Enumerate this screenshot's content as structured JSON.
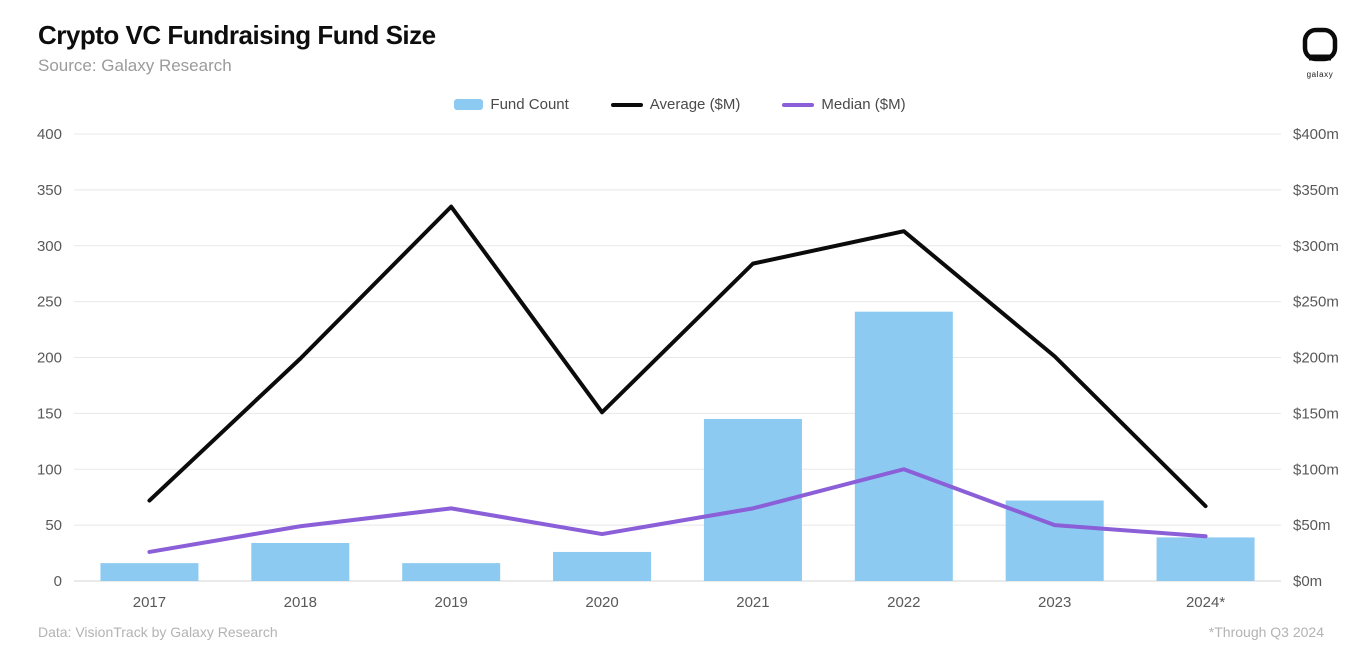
{
  "header": {
    "title": "Crypto VC Fundraising Fund Size",
    "subtitle": "Source: Galaxy Research"
  },
  "logo": {
    "label": "galaxy"
  },
  "legend": [
    {
      "label": "Fund Count",
      "swatch": "bar",
      "color": "#8DCAF2"
    },
    {
      "label": "Average ($M)",
      "swatch": "line",
      "color": "#0b0b0b"
    },
    {
      "label": "Median ($M)",
      "swatch": "line",
      "color": "#8A5FD8"
    }
  ],
  "footer": {
    "left": "Data: VisionTrack by Galaxy Research",
    "right": "*Through Q3 2024"
  },
  "chart_data": {
    "type": "bar",
    "title": "Crypto VC Fundraising Fund Size",
    "categories": [
      "2017",
      "2018",
      "2019",
      "2020",
      "2021",
      "2022",
      "2023",
      "2024*"
    ],
    "series": [
      {
        "name": "Fund Count",
        "type": "bar",
        "axis": "left",
        "color": "#8DCAF2",
        "values": [
          16,
          34,
          16,
          26,
          145,
          241,
          72,
          39
        ]
      },
      {
        "name": "Average ($M)",
        "type": "line",
        "axis": "right",
        "color": "#0b0b0b",
        "values": [
          72,
          199,
          335,
          151,
          284,
          313,
          201,
          67
        ]
      },
      {
        "name": "Median ($M)",
        "type": "line",
        "axis": "right",
        "color": "#8A5FD8",
        "values": [
          26,
          49,
          65,
          42,
          65,
          100,
          50,
          40
        ]
      }
    ],
    "left_axis": {
      "min": 0,
      "max": 400,
      "step": 50,
      "ticks": [
        "0",
        "50",
        "100",
        "150",
        "200",
        "250",
        "300",
        "350",
        "400"
      ]
    },
    "right_axis": {
      "min": 0,
      "max": 400,
      "step": 50,
      "ticks": [
        "$0m",
        "$50m",
        "$100m",
        "$150m",
        "$200m",
        "$250m",
        "$300m",
        "$350m",
        "$400m"
      ]
    },
    "grid": true,
    "legend_position": "top"
  },
  "colors": {
    "gridline": "#e8e8e8",
    "baseline": "#d4d4d4",
    "tick_text": "#595959",
    "category_text": "#595959"
  }
}
